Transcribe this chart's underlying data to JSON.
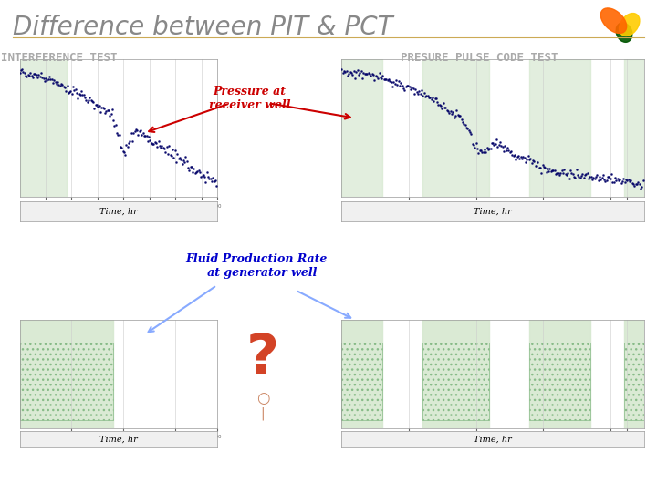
{
  "title": "Difference between PIT & PCT",
  "title_color": "#888888",
  "title_fontsize": 20,
  "bg_color": "#ffffff",
  "left_header": "INTERFERENCE TEST",
  "right_header": "PRESURE PULSE CODE TEST",
  "header_color": "#aaaaaa",
  "header_fontsize": 9,
  "annotation_pressure": "Pressure at\nreceiver well",
  "annotation_fluid": "Fluid Production Rate\n   at generator well",
  "annotation_pressure_color": "#cc0000",
  "annotation_fluid_color": "#0000cc",
  "annotation_fluid_fontweight": "bold",
  "green_bg": "#d6e8d0",
  "green_bg_alpha": 0.7,
  "plot_bg": "#ffffff",
  "grid_color": "#cccccc",
  "data_color": "#000066",
  "time_label": "Time, hr",
  "question_mark_color": "#cc0000",
  "logo_colors": [
    "#ff6600",
    "#ffcc00",
    "#006600"
  ]
}
